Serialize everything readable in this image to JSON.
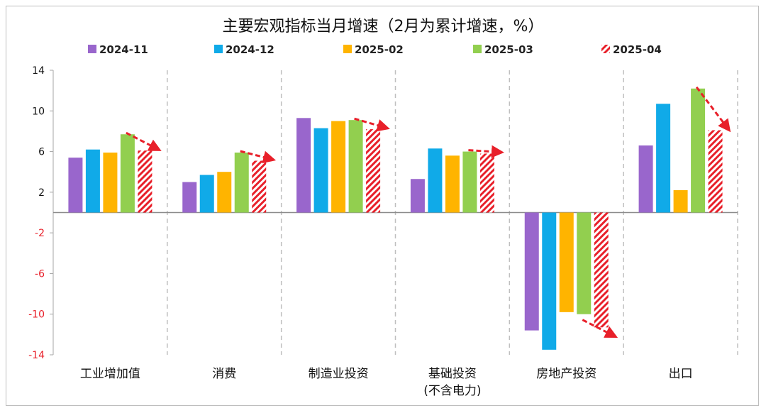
{
  "chart_data": {
    "type": "bar",
    "title": "主要宏观指标当月增速（2月为累计增速，%）",
    "categories": [
      [
        "工业增加值"
      ],
      [
        "消费"
      ],
      [
        "制造业投资"
      ],
      [
        "基础投资",
        "(不含电力)"
      ],
      [
        "房地产投资"
      ],
      [
        "出口"
      ]
    ],
    "series": [
      {
        "name": "2024-11",
        "color": "#9966CC",
        "pattern": "solid",
        "values": [
          5.4,
          3.0,
          9.3,
          3.3,
          -11.6,
          6.6
        ]
      },
      {
        "name": "2024-12",
        "color": "#10AAE8",
        "pattern": "solid",
        "values": [
          6.2,
          3.7,
          8.3,
          6.3,
          -13.5,
          10.7
        ]
      },
      {
        "name": "2025-02",
        "color": "#FFB400",
        "pattern": "solid",
        "values": [
          5.9,
          4.0,
          9.0,
          5.6,
          -9.8,
          2.2
        ]
      },
      {
        "name": "2025-03",
        "color": "#92CF4F",
        "pattern": "solid",
        "values": [
          7.7,
          5.9,
          9.1,
          6.0,
          -10.0,
          12.2
        ]
      },
      {
        "name": "2025-04",
        "color": "#E8202A",
        "pattern": "hatched",
        "values": [
          6.1,
          5.1,
          8.2,
          5.8,
          -11.3,
          8.1
        ]
      }
    ],
    "ylim": [
      -14,
      14
    ],
    "yticks": [
      14,
      10,
      6,
      2,
      -2,
      -6,
      -10,
      -14
    ],
    "xlabel": "",
    "ylabel": "",
    "grid": false,
    "category_separators": "dashed-vertical",
    "legend_position": "top",
    "annotations": "red dashed arrows from 2025-03 bar to 2025-04 bar in each category"
  }
}
